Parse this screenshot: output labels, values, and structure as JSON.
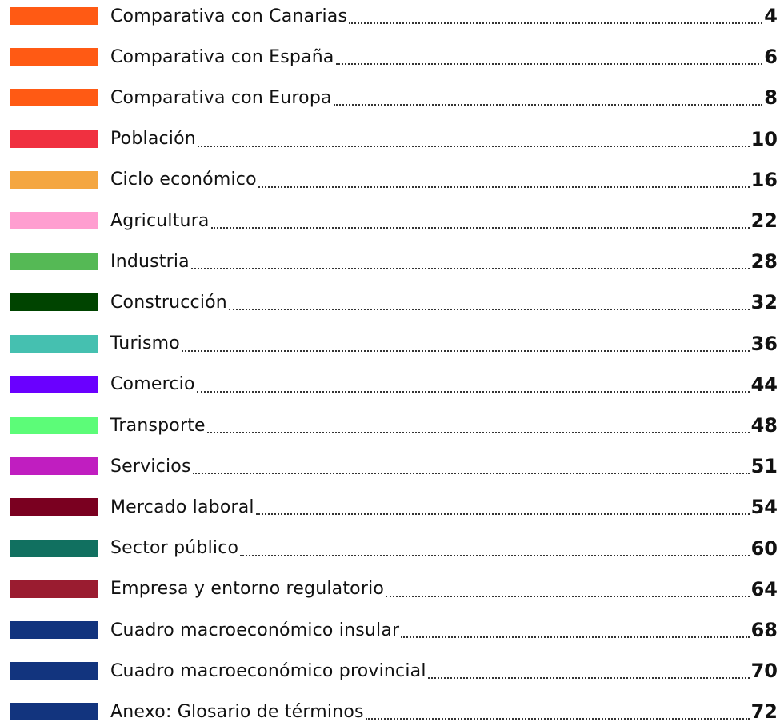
{
  "toc": {
    "entries": [
      {
        "title": "Comparativa con Canarias",
        "page": "4",
        "color": "#ff5a14"
      },
      {
        "title": "Comparativa con España",
        "page": "6",
        "color": "#ff5a14"
      },
      {
        "title": "Comparativa con Europa",
        "page": "8",
        "color": "#ff5a14"
      },
      {
        "title": "Población",
        "page": "10",
        "color": "#f03040"
      },
      {
        "title": "Ciclo económico",
        "page": "16",
        "color": "#f4a641"
      },
      {
        "title": "Agricultura",
        "page": "22",
        "color": "#ff9ed0"
      },
      {
        "title": "Industria",
        "page": "28",
        "color": "#55b955"
      },
      {
        "title": "Construcción",
        "page": "32",
        "color": "#004400"
      },
      {
        "title": "Turismo",
        "page": "36",
        "color": "#45c0b0"
      },
      {
        "title": "Comercio",
        "page": "44",
        "color": "#6a00ff"
      },
      {
        "title": "Transporte",
        "page": "48",
        "color": "#5cfc78"
      },
      {
        "title": "Servicios",
        "page": "51",
        "color": "#c01ec0"
      },
      {
        "title": "Mercado laboral",
        "page": "54",
        "color": "#7a0020"
      },
      {
        "title": "Sector público",
        "page": "60",
        "color": "#117060"
      },
      {
        "title": "Empresa y entorno regulatorio",
        "page": "64",
        "color": "#9a1c30"
      },
      {
        "title": "Cuadro macroeconómico insular",
        "page": "68",
        "color": "#12347e"
      },
      {
        "title": "Cuadro macroeconómico provincial",
        "page": "70",
        "color": "#12347e"
      },
      {
        "title": "Anexo: Glosario de términos",
        "page": "72",
        "color": "#12347e"
      }
    ]
  }
}
